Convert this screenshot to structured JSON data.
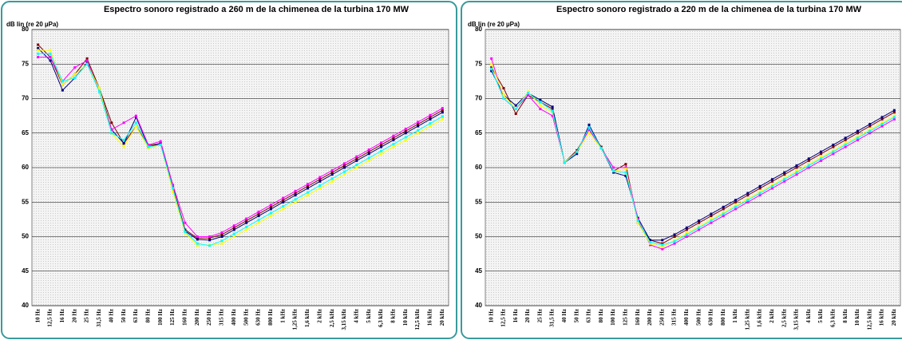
{
  "charts": [
    {
      "chart_data": {
        "type": "line",
        "title": "Espectro sonoro registrado a 260 m de la chimenea de la turbina 170 MW",
        "y_label": "dB lin (re 20 µPa)",
        "categories": [
          "10 Hz",
          "12,5 Hz",
          "16 Hz",
          "20 Hz",
          "25 Hz",
          "31,5 Hz",
          "40 Hz",
          "50 Hz",
          "63 Hz",
          "80 Hz",
          "100 Hz",
          "125 Hz",
          "160 Hz",
          "200 Hz",
          "250 Hz",
          "315 Hz",
          "400 Hz",
          "500 Hz",
          "630 Hz",
          "800 Hz",
          "1 kHz",
          "1,25 kHz",
          "1,6 kHz",
          "2 kHz",
          "2,5 kHz",
          "3,15 kHz",
          "4 kHz",
          "5 kHz",
          "6,3 kHz",
          "8 kHz",
          "10 kHz",
          "12,5 kHz",
          "16 kHz",
          "20 kHz"
        ],
        "ylim": [
          40,
          80
        ],
        "yticks": [
          40,
          45,
          50,
          55,
          60,
          65,
          70,
          75,
          80
        ],
        "grid": true,
        "series": [
          {
            "color": "#800000",
            "values": [
              77.8,
              76,
              72,
              73.5,
              75.8,
              71.5,
              66.5,
              63.5,
              66,
              63.2,
              63.5,
              57.3,
              51,
              49.8,
              49.8,
              50.3,
              51.3,
              52.3,
              53.3,
              54.3,
              55.3,
              56.3,
              57.3,
              58.3,
              59.3,
              60.3,
              61.3,
              62.3,
              63.3,
              64.3,
              65.3,
              66.3,
              67.3,
              68.3
            ]
          },
          {
            "color": "#000080",
            "values": [
              77.3,
              75.5,
              71.2,
              73,
              75.2,
              71.5,
              65.5,
              63.5,
              67.3,
              63,
              63.5,
              57,
              50.8,
              49.6,
              49.5,
              50,
              51,
              52,
              53,
              54,
              55,
              56,
              57,
              58,
              59,
              60,
              61,
              62,
              63,
              64,
              65,
              66,
              67,
              68
            ]
          },
          {
            "color": "#ff00ff",
            "values": [
              76,
              76,
              72.5,
              74.5,
              75.5,
              71,
              65.5,
              66.5,
              67.5,
              63.3,
              63.8,
              57.5,
              52,
              50,
              50,
              50.6,
              51.6,
              52.6,
              53.6,
              54.6,
              55.6,
              56.6,
              57.6,
              58.6,
              59.6,
              60.6,
              61.6,
              62.6,
              63.6,
              64.6,
              65.6,
              66.6,
              67.6,
              68.6
            ]
          },
          {
            "color": "#ffff00",
            "values": [
              77,
              77,
              72,
              73.5,
              75,
              71.5,
              65,
              63,
              66,
              62.8,
              63.3,
              56.5,
              50.5,
              48.7,
              48.8,
              49,
              50,
              51,
              52,
              53,
              54,
              55,
              56,
              57,
              58,
              59,
              60,
              61,
              62,
              63,
              64,
              65,
              66,
              67
            ]
          },
          {
            "color": "#00ffff",
            "values": [
              76.5,
              76.5,
              72.5,
              73,
              75,
              71,
              65,
              64,
              66.5,
              63,
              63.3,
              57,
              50.7,
              49,
              48.7,
              49.4,
              50.4,
              51.4,
              52.4,
              53.4,
              54.4,
              55.4,
              56.4,
              57.4,
              58.4,
              59.4,
              60.4,
              61.4,
              62.4,
              63.4,
              64.4,
              65.4,
              66.4,
              67.4
            ]
          }
        ]
      }
    },
    {
      "chart_data": {
        "type": "line",
        "title": "Espectro sonoro registrado a 220 m de la chimenea de la turbina 170 MW",
        "y_label": "dB lin (re 20 µPa)",
        "categories": [
          "10 Hz",
          "12,5 Hz",
          "16 Hz",
          "20 Hz",
          "25 Hz",
          "31,5 Hz",
          "40 Hz",
          "50 Hz",
          "63 Hz",
          "80 Hz",
          "100 Hz",
          "125 Hz",
          "160 Hz",
          "200 Hz",
          "250 Hz",
          "315 Hz",
          "400 Hz",
          "500 Hz",
          "630 Hz",
          "800 Hz",
          "1 kHz",
          "1,25 kHz",
          "1,6 kHz",
          "2 kHz",
          "2,5 kHz",
          "3,15 kHz",
          "4 kHz",
          "5 kHz",
          "6,3 kHz",
          "8 kHz",
          "10 kHz",
          "12,5 kHz",
          "16 kHz",
          "20 kHz"
        ],
        "ylim": [
          40,
          80
        ],
        "yticks": [
          40,
          45,
          50,
          55,
          60,
          65,
          70,
          75,
          80
        ],
        "grid": true,
        "series": [
          {
            "color": "#800000",
            "values": [
              74.5,
              71.5,
              67.8,
              70.5,
              69.5,
              68.5,
              60.8,
              62.5,
              65.5,
              63,
              59.5,
              60.5,
              52,
              49.5,
              49,
              50,
              51,
              52,
              53,
              54,
              55,
              56,
              57,
              58,
              59,
              60,
              61,
              62,
              63,
              64,
              65,
              66,
              67,
              68
            ]
          },
          {
            "color": "#000080",
            "values": [
              74,
              70.5,
              69,
              70.8,
              69.8,
              68.8,
              60.7,
              62,
              66.2,
              62.8,
              59.3,
              58.8,
              52.7,
              49.5,
              49.5,
              50.3,
              51.3,
              52.3,
              53.3,
              54.3,
              55.3,
              56.3,
              57.3,
              58.3,
              59.3,
              60.3,
              61.3,
              62.3,
              63.3,
              64.3,
              65.3,
              66.3,
              67.3,
              68.3
            ]
          },
          {
            "color": "#ff00ff",
            "values": [
              75.8,
              70,
              68.5,
              70.5,
              68.5,
              67.5,
              60.8,
              62.3,
              65.5,
              62.8,
              60,
              60,
              52.5,
              48.8,
              48.2,
              49,
              50,
              51,
              52,
              53,
              54,
              55,
              56,
              57,
              58,
              59,
              60,
              61,
              62,
              63,
              64,
              65,
              66,
              67
            ]
          },
          {
            "color": "#ffff00",
            "values": [
              75,
              70.5,
              68.5,
              71,
              69,
              68,
              60.8,
              62.3,
              65,
              62.8,
              59.5,
              59.8,
              52,
              49,
              48.5,
              49.5,
              50.5,
              51.5,
              52.5,
              53.5,
              54.5,
              55.5,
              56.5,
              57.5,
              58.5,
              59.5,
              60.5,
              61.5,
              62.5,
              63.5,
              64.5,
              65.5,
              66.5,
              67.5
            ]
          },
          {
            "color": "#00ffff",
            "values": [
              74.3,
              70,
              68.5,
              70.8,
              69.5,
              68.2,
              60.7,
              62.3,
              65.8,
              62.8,
              59.5,
              59.3,
              52.3,
              49.2,
              48.8,
              49.3,
              50.3,
              51.3,
              52.3,
              53.3,
              54.3,
              55.3,
              56.3,
              57.3,
              58.3,
              59.3,
              60.3,
              61.3,
              62.3,
              63.3,
              64.3,
              65.3,
              66.3,
              67.3
            ]
          }
        ]
      }
    }
  ]
}
